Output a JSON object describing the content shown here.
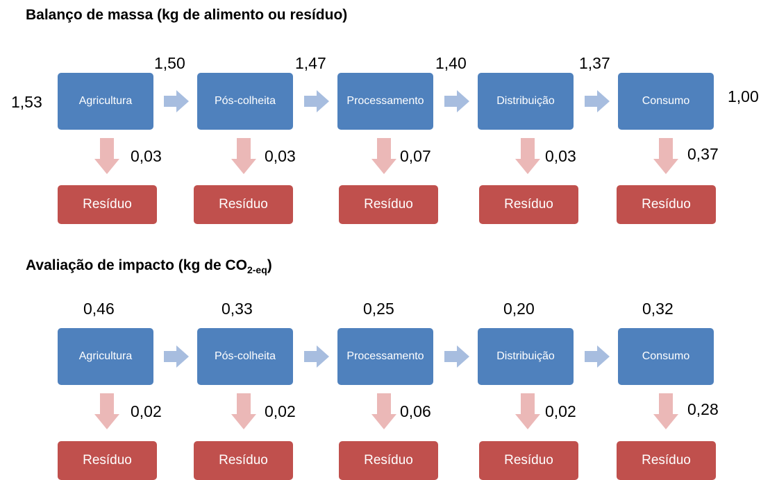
{
  "colors": {
    "stage": "#4f81bd",
    "waste": "#c0504d",
    "flow_arrow": "#a7bddf",
    "loss_arrow": "#ebb8b7"
  },
  "stage_labels": [
    "Agricultura",
    "Pós-colheita",
    "Processamento",
    "Distribuição",
    "Consumo"
  ],
  "waste_label": "Resíduo",
  "mass_balance": {
    "title": "Balanço de massa (kg de alimento ou resíduo)",
    "input": "1,53",
    "flows": [
      "1,50",
      "1,47",
      "1,40",
      "1,37"
    ],
    "output": "1,00",
    "losses": [
      "0,03",
      "0,03",
      "0,07",
      "0,03",
      "0,37"
    ]
  },
  "impact": {
    "title_main": "Avaliação de impacto (kg de CO",
    "title_sub": "2-eq",
    "title_end": ")",
    "stage_values": [
      "0,46",
      "0,33",
      "0,25",
      "0,20",
      "0,32"
    ],
    "losses": [
      "0,02",
      "0,02",
      "0,06",
      "0,02",
      "0,28"
    ]
  }
}
